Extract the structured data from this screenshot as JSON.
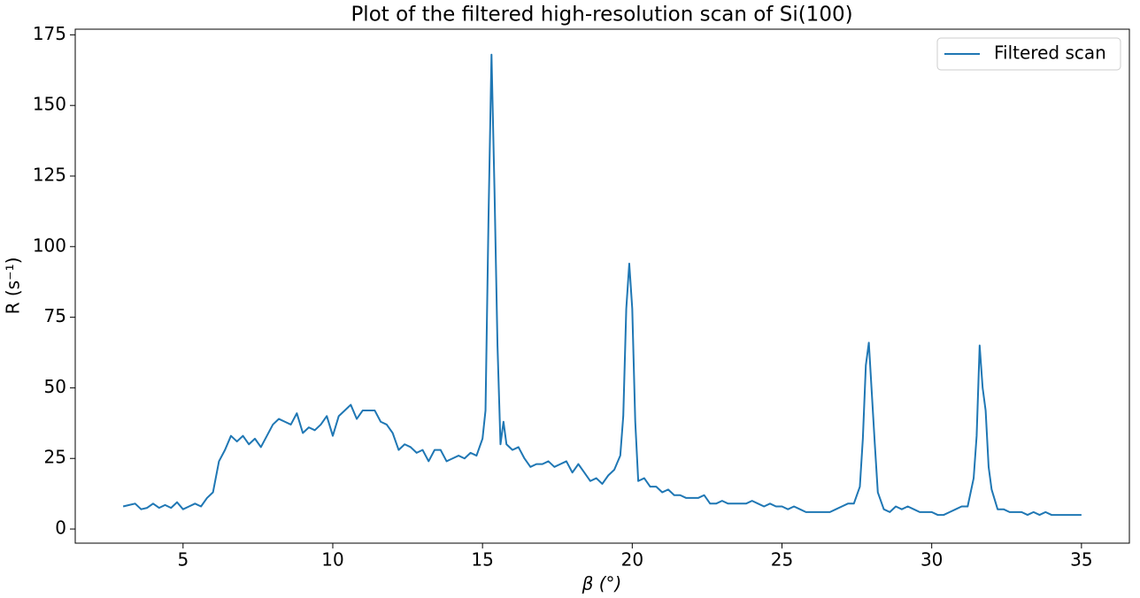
{
  "chart_data": {
    "type": "line",
    "title": "Plot of the filtered high-resolution scan of Si(100)",
    "x_label": "β (°)",
    "y_label": "R (s⁻¹)",
    "x": [
      3.0,
      3.2,
      3.4,
      3.6,
      3.8,
      4.0,
      4.2,
      4.4,
      4.6,
      4.8,
      5.0,
      5.2,
      5.4,
      5.6,
      5.8,
      6.0,
      6.2,
      6.4,
      6.6,
      6.8,
      7.0,
      7.2,
      7.4,
      7.6,
      7.8,
      8.0,
      8.2,
      8.4,
      8.6,
      8.8,
      9.0,
      9.2,
      9.4,
      9.6,
      9.8,
      10.0,
      10.2,
      10.4,
      10.6,
      10.8,
      11.0,
      11.2,
      11.4,
      11.6,
      11.8,
      12.0,
      12.2,
      12.4,
      12.6,
      12.8,
      13.0,
      13.2,
      13.4,
      13.6,
      13.8,
      14.0,
      14.2,
      14.4,
      14.6,
      14.8,
      15.0,
      15.1,
      15.2,
      15.3,
      15.4,
      15.5,
      15.6,
      15.7,
      15.8,
      16.0,
      16.2,
      16.4,
      16.6,
      16.8,
      17.0,
      17.2,
      17.4,
      17.6,
      17.8,
      18.0,
      18.2,
      18.4,
      18.6,
      18.8,
      19.0,
      19.2,
      19.4,
      19.6,
      19.7,
      19.8,
      19.9,
      20.0,
      20.1,
      20.2,
      20.4,
      20.6,
      20.8,
      21.0,
      21.2,
      21.4,
      21.6,
      21.8,
      22.0,
      22.2,
      22.4,
      22.6,
      22.8,
      23.0,
      23.2,
      23.4,
      23.6,
      23.8,
      24.0,
      24.2,
      24.4,
      24.6,
      24.8,
      25.0,
      25.2,
      25.4,
      25.6,
      25.8,
      26.0,
      26.2,
      26.4,
      26.6,
      26.8,
      27.0,
      27.2,
      27.4,
      27.6,
      27.7,
      27.8,
      27.9,
      28.0,
      28.1,
      28.2,
      28.4,
      28.6,
      28.8,
      29.0,
      29.2,
      29.4,
      29.6,
      29.8,
      30.0,
      30.2,
      30.4,
      30.6,
      30.8,
      31.0,
      31.2,
      31.4,
      31.5,
      31.6,
      31.7,
      31.8,
      31.9,
      32.0,
      32.2,
      32.4,
      32.6,
      32.8,
      33.0,
      33.2,
      33.4,
      33.6,
      33.8,
      34.0,
      34.2,
      34.4,
      34.6,
      34.8,
      35.0
    ],
    "series": [
      {
        "name": "Filtered scan",
        "color": "#1f77b4",
        "values": [
          8,
          8.5,
          9,
          7,
          7.5,
          9,
          7.5,
          8.5,
          7.5,
          9.5,
          7,
          8,
          9,
          8,
          11,
          13,
          24,
          28,
          33,
          31,
          33,
          30,
          32,
          29,
          33,
          37,
          39,
          38,
          37,
          41,
          34,
          36,
          35,
          37,
          40,
          33,
          40,
          42,
          44,
          39,
          42,
          42,
          42,
          38,
          37,
          34,
          28,
          30,
          29,
          27,
          28,
          24,
          28,
          28,
          24,
          25,
          26,
          25,
          27,
          26,
          32,
          42,
          110,
          168,
          120,
          65,
          30,
          38,
          30,
          28,
          29,
          25,
          22,
          23,
          23,
          24,
          22,
          23,
          24,
          20,
          23,
          20,
          17,
          18,
          16,
          19,
          21,
          26,
          40,
          78,
          94,
          78,
          38,
          17,
          18,
          15,
          15,
          13,
          14,
          12,
          12,
          11,
          11,
          11,
          12,
          9,
          9,
          10,
          9,
          9,
          9,
          9,
          10,
          9,
          8,
          9,
          8,
          8,
          7,
          8,
          7,
          6,
          6,
          6,
          6,
          6,
          7,
          8,
          9,
          9,
          15,
          32,
          58,
          66,
          48,
          30,
          13,
          7,
          6,
          8,
          7,
          8,
          7,
          6,
          6,
          6,
          5,
          5,
          6,
          7,
          8,
          8,
          18,
          33,
          65,
          50,
          42,
          22,
          14,
          7,
          7,
          6,
          6,
          6,
          5,
          6,
          5,
          6,
          5,
          5,
          5,
          5,
          5,
          5
        ]
      }
    ],
    "xlim": [
      1.4,
      36.6
    ],
    "ylim": [
      -5,
      177
    ],
    "xticks": [
      5,
      10,
      15,
      20,
      25,
      30,
      35
    ],
    "yticks": [
      0,
      25,
      50,
      75,
      100,
      125,
      150,
      175
    ],
    "legend": "upper right",
    "grid": false
  }
}
